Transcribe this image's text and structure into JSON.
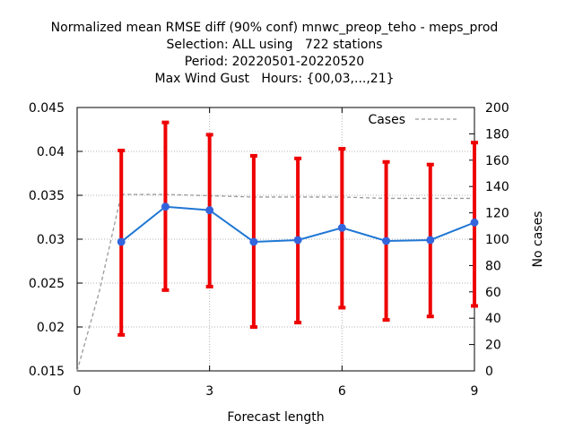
{
  "chart_data": {
    "type": "line",
    "title_lines": [
      "Normalized mean RMSE diff (90% conf) mnwc_preop_teho - meps_prod",
      "Selection: ALL using   722 stations",
      "Period: 20220501-20220520",
      "Max Wind Gust   Hours: {00,03,...,21}"
    ],
    "xlabel": "Forecast length",
    "ylabel": "",
    "y2label": "No cases",
    "xlim": [
      0,
      9
    ],
    "ylim": [
      0.015,
      0.045
    ],
    "y2lim": [
      0,
      200
    ],
    "xticks": [
      0,
      3,
      6,
      9
    ],
    "xtick_labels": [
      "0",
      "3",
      "6",
      "9"
    ],
    "yticks": [
      0.015,
      0.02,
      0.025,
      0.03,
      0.035,
      0.04,
      0.045
    ],
    "ytick_labels": [
      "0.015",
      "0.02",
      "0.025",
      "0.03",
      "0.035",
      "0.04",
      "0.045"
    ],
    "y2ticks": [
      0,
      20,
      40,
      60,
      80,
      100,
      120,
      140,
      160,
      180,
      200
    ],
    "y2tick_labels": [
      "0",
      "20",
      "40",
      "60",
      "80",
      "100",
      "120",
      "140",
      "160",
      "180",
      "200"
    ],
    "grid": true,
    "legend_position": "top-right",
    "series": [
      {
        "name": "",
        "axis": "left",
        "color": "#1f77d4",
        "x": [
          1,
          2,
          3,
          4,
          5,
          6,
          7,
          8,
          9
        ],
        "y": [
          0.0297,
          0.0337,
          0.0333,
          0.0297,
          0.0299,
          0.0313,
          0.0298,
          0.0299,
          0.0319
        ],
        "err_low": [
          0.0191,
          0.0242,
          0.0246,
          0.02,
          0.0205,
          0.0222,
          0.0208,
          0.0212,
          0.0224
        ],
        "err_high": [
          0.0401,
          0.0433,
          0.0419,
          0.0395,
          0.0392,
          0.0403,
          0.0388,
          0.0385,
          0.041
        ],
        "err_color": "#ee0000"
      },
      {
        "name": "Cases",
        "axis": "right",
        "color": "#999999",
        "style": "dashed",
        "x": [
          0,
          0.5,
          1,
          2,
          3,
          4,
          5,
          6,
          7,
          8,
          9
        ],
        "y": [
          0,
          60,
          134,
          134,
          133,
          132,
          132,
          132,
          131,
          131,
          131
        ]
      }
    ]
  }
}
